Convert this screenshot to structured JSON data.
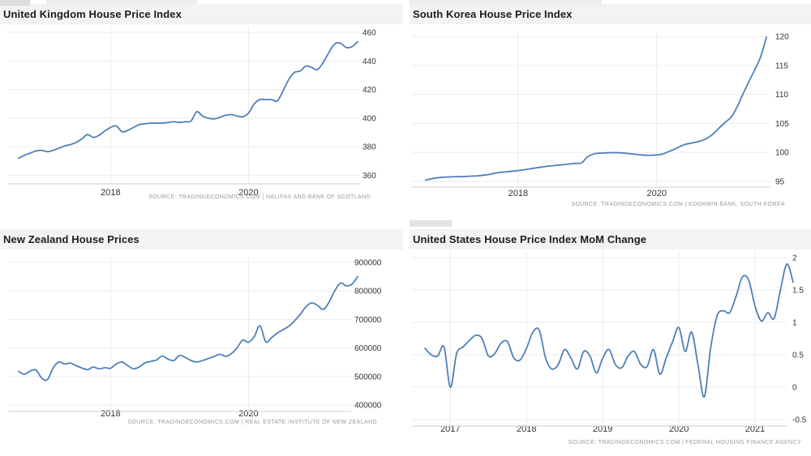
{
  "theme": {
    "accent": "#4d80b9",
    "title_bar_bg": "#f3f3f3",
    "title_color": "#1d1d1d",
    "grid_color": "#ebebeb",
    "axis_color": "#cfcfcf",
    "tick_color": "#333333",
    "source_color": "#9a9a9a",
    "background": "#ffffff"
  },
  "chart_data": [
    {
      "type": "line",
      "title": "United Kingdom House Price Index",
      "source": "SOURCE: TRADINGECONOMICS.COM | HALIFAX AND BANK OF SCOTLAND",
      "line_color": "#4d80b9",
      "x_period": "monthly",
      "x_start": "2016-09",
      "x_end": "2021-08",
      "x_ticks": [
        {
          "label": "2018",
          "month_index": 16
        },
        {
          "label": "2020",
          "month_index": 40
        }
      ],
      "y_ticks": [
        460,
        440,
        420,
        400,
        380,
        360
      ],
      "ylim": [
        354,
        464
      ],
      "grid": true,
      "legend": "none",
      "values": [
        372,
        374,
        375.5,
        377,
        377.5,
        376.5,
        377.5,
        379,
        380.5,
        381.5,
        383,
        385.5,
        388.5,
        386.5,
        388,
        391,
        393.5,
        394.5,
        390.5,
        391.5,
        393.5,
        395.5,
        396,
        396.5,
        396.5,
        396.5,
        397,
        397.5,
        397,
        397.5,
        398,
        404.5,
        401.5,
        400,
        399.5,
        400.5,
        402,
        402.5,
        401.5,
        401,
        403.5,
        410,
        413,
        413,
        413,
        412,
        419,
        427,
        432,
        433,
        436.5,
        435.5,
        434,
        439,
        446,
        452,
        452.5,
        449.5,
        450,
        453.5
      ],
      "layout": {
        "y_top": 33,
        "y_bottom": 227,
        "axis_y": 227,
        "grid_left": 10,
        "grid_right": 444,
        "x_data_left": 23,
        "x_data_right": 441,
        "y_label_x": 447,
        "x_label_y": 241
      }
    },
    {
      "type": "line",
      "title": "South Korea House Price Index",
      "source": "SOURCE: TRADINGECONOMICS.COM | KOOKMIN BANK, SOUTH KOREA",
      "line_color": "#4d80b9",
      "x_period": "monthly",
      "x_start": "2016-09",
      "x_end": "2021-08",
      "x_ticks": [
        {
          "label": "2018",
          "month_index": 16
        },
        {
          "label": "2020",
          "month_index": 40
        }
      ],
      "y_ticks": [
        120,
        115,
        110,
        105,
        100,
        95
      ],
      "ylim": [
        94,
        121
      ],
      "grid": true,
      "legend": "none",
      "values": [
        95.2,
        95.45,
        95.6,
        95.7,
        95.75,
        95.8,
        95.8,
        95.85,
        95.9,
        95.95,
        96.05,
        96.2,
        96.4,
        96.55,
        96.65,
        96.75,
        96.85,
        97.0,
        97.15,
        97.3,
        97.45,
        97.6,
        97.7,
        97.8,
        97.9,
        98.0,
        98.1,
        98.2,
        99.2,
        99.7,
        99.85,
        99.9,
        99.95,
        99.95,
        99.9,
        99.8,
        99.7,
        99.6,
        99.5,
        99.5,
        99.55,
        99.7,
        100.1,
        100.5,
        101.0,
        101.4,
        101.6,
        101.8,
        102.1,
        102.6,
        103.4,
        104.4,
        105.3,
        106.2,
        108.0,
        110.2,
        112.3,
        114.3,
        116.5,
        119.9
      ],
      "layout": {
        "y_top": 38,
        "y_bottom": 231,
        "axis_y": 231,
        "grid_left": 8,
        "grid_right": 449,
        "x_data_left": 25,
        "x_data_right": 445,
        "y_label_x": 456,
        "x_label_y": 242
      }
    },
    {
      "type": "line",
      "title": "New Zealand House Prices",
      "source": "SOURCE: TRADINGECONOMICS.COM | REAL ESTATE INSTITUTE OF NEW ZEALAND",
      "line_color": "#4d80b9",
      "x_period": "monthly",
      "x_start": "2016-09",
      "x_end": "2021-08",
      "x_ticks": [
        {
          "label": "2018",
          "month_index": 16
        },
        {
          "label": "2020",
          "month_index": 40
        }
      ],
      "y_ticks": [
        900000,
        800000,
        700000,
        600000,
        500000,
        400000
      ],
      "ylim": [
        386000,
        920000
      ],
      "grid": true,
      "legend": "none",
      "values": [
        518000,
        508000,
        519000,
        523000,
        495000,
        489000,
        530000,
        551000,
        544000,
        547000,
        538000,
        530000,
        524000,
        533000,
        527000,
        531000,
        529000,
        544000,
        551000,
        538000,
        527000,
        534000,
        548000,
        553000,
        558000,
        572000,
        561000,
        556000,
        574000,
        567000,
        556000,
        551000,
        556000,
        563000,
        570000,
        578000,
        571000,
        580000,
        600000,
        628000,
        620000,
        640000,
        678000,
        622000,
        636000,
        652000,
        664000,
        676000,
        695000,
        718000,
        745000,
        758000,
        750000,
        735000,
        760000,
        800000,
        828000,
        818000,
        824000,
        850000
      ],
      "layout": {
        "y_top": 36,
        "y_bottom": 224,
        "axis_y": 227,
        "grid_left": 10,
        "grid_right": 433,
        "x_data_left": 23,
        "x_data_right": 441,
        "y_label_x": 437,
        "x_label_y": 233
      }
    },
    {
      "type": "line",
      "title": "United States House Price Index MoM Change",
      "source": "SOURCE: TRADINGECONOMICS.COM | FEDERAL HOUSING FINANCE AGENCY",
      "line_color": "#4d80b9",
      "x_period": "monthly",
      "x_start": "2016-09",
      "x_end": "2021-07",
      "x_ticks": [
        {
          "label": "2017",
          "month_index": 4
        },
        {
          "label": "2018",
          "month_index": 16
        },
        {
          "label": "2019",
          "month_index": 28
        },
        {
          "label": "2020",
          "month_index": 40
        },
        {
          "label": "2021",
          "month_index": 52
        }
      ],
      "y_ticks": [
        2,
        1.5,
        1,
        0.5,
        0,
        -0.5
      ],
      "ylim": [
        -0.6,
        2.1
      ],
      "grid": true,
      "legend": "none",
      "values": [
        0.6,
        0.5,
        0.48,
        0.62,
        0.0,
        0.52,
        0.62,
        0.72,
        0.8,
        0.75,
        0.48,
        0.52,
        0.68,
        0.7,
        0.45,
        0.42,
        0.6,
        0.85,
        0.88,
        0.45,
        0.28,
        0.35,
        0.58,
        0.45,
        0.28,
        0.55,
        0.48,
        0.22,
        0.45,
        0.58,
        0.35,
        0.3,
        0.48,
        0.55,
        0.35,
        0.32,
        0.58,
        0.2,
        0.45,
        0.7,
        0.92,
        0.55,
        0.85,
        0.35,
        -0.15,
        0.6,
        1.1,
        1.18,
        1.15,
        1.4,
        1.7,
        1.65,
        1.25,
        1.02,
        1.15,
        1.06,
        1.5,
        1.9,
        1.62
      ],
      "layout": {
        "y_top": 29,
        "y_bottom": 245,
        "axis_y": 245,
        "grid_left": 8,
        "grid_right": 470,
        "x_data_left": 24,
        "x_data_right": 478,
        "y_label_x": 477,
        "x_label_y": 252
      }
    }
  ]
}
